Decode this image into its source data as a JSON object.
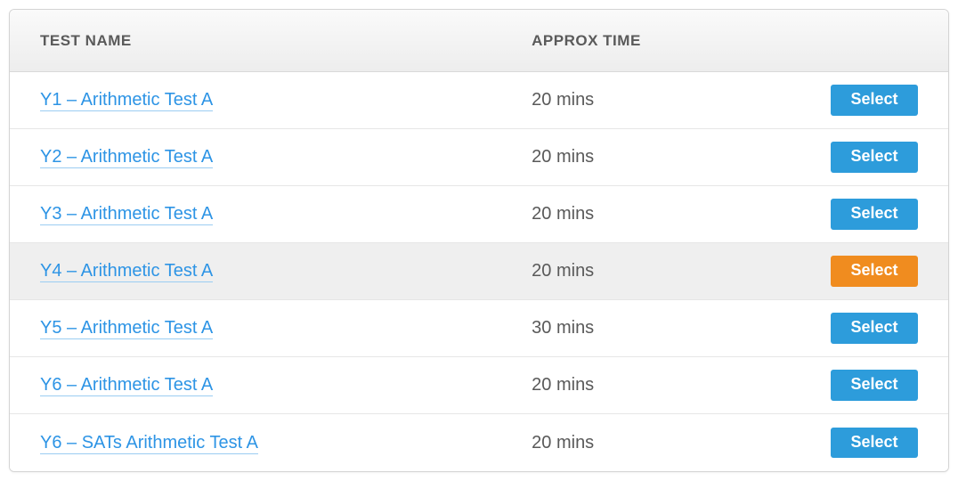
{
  "table": {
    "headers": {
      "name": "TEST NAME",
      "time": "APPROX TIME"
    },
    "button_label": "Select",
    "colors": {
      "link": "#2d94e5",
      "link_underline": "#9bcdf2",
      "header_text": "#5a5a5a",
      "time_text": "#595959",
      "row_highlight_bg": "#efefef",
      "btn_blue": "#2d9cdb",
      "btn_orange": "#f08c1f",
      "border": "#d4d4d4"
    },
    "rows": [
      {
        "name": "Y1 – Arithmetic Test A",
        "time": "20 mins",
        "highlight": false,
        "btn_color": "blue"
      },
      {
        "name": "Y2 – Arithmetic Test A",
        "time": "20 mins",
        "highlight": false,
        "btn_color": "blue"
      },
      {
        "name": "Y3 – Arithmetic Test A",
        "time": "20 mins",
        "highlight": false,
        "btn_color": "blue"
      },
      {
        "name": "Y4 – Arithmetic Test A",
        "time": "20 mins",
        "highlight": true,
        "btn_color": "orange"
      },
      {
        "name": "Y5 – Arithmetic Test A",
        "time": "30 mins",
        "highlight": false,
        "btn_color": "blue"
      },
      {
        "name": "Y6 – Arithmetic Test A",
        "time": "20 mins",
        "highlight": false,
        "btn_color": "blue"
      },
      {
        "name": "Y6 – SATs Arithmetic Test A",
        "time": "20 mins",
        "highlight": false,
        "btn_color": "blue"
      }
    ]
  }
}
